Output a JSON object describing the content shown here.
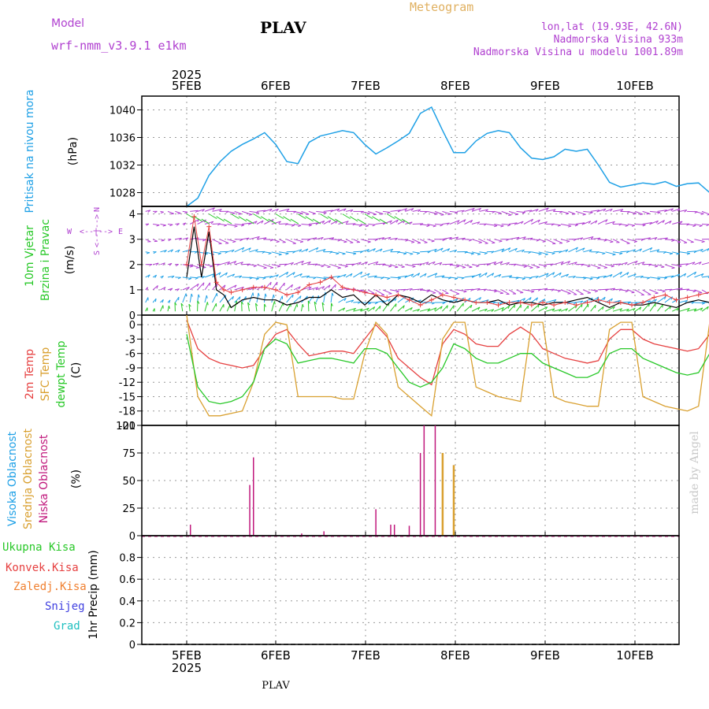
{
  "header": {
    "model_label": "Model",
    "model_name": "wrf-nmm_v3.9.1 e1km",
    "station": "PLAV",
    "product": "Meteogram",
    "coords": "lon,lat (19.93E, 42.6N)",
    "elevation": "Nadmorska Visina 933m",
    "model_elevation": "Nadmorska Visina u modelu 1001.89m"
  },
  "footer": {
    "station": "PLAV",
    "watermark": "made by Angel"
  },
  "time_axis": {
    "year": "2025",
    "days": [
      "5FEB",
      "6FEB",
      "7FEB",
      "8FEB",
      "9FEB",
      "10FEB"
    ]
  },
  "panels": {
    "pressure": {
      "ylabel": "Pritisak na nivou mora",
      "unit": "(hPa)"
    },
    "wind": {
      "ylabel1": "10m Vjetar",
      "ylabel2": "Brzina i Pravac",
      "unit": "(m/s)",
      "compass": {
        "n": "N",
        "s": "S",
        "e": "E",
        "w": "W",
        "cross": "<--|-->"
      }
    },
    "temperature": {
      "series_labels": [
        "2m Temp",
        "SFC Temp",
        "dewpt Temp"
      ],
      "unit": "(C)"
    },
    "cloud": {
      "series_labels": [
        "Visoka Oblacnost",
        "Srednja Oblacnost",
        "Niska Oblacnost"
      ],
      "unit": "(%)"
    },
    "precip": {
      "legend": [
        "Ukupna Kisa",
        "Konvek.Kisa",
        "Zaledj.Kisa",
        "Snijeg",
        "Grad"
      ],
      "ylabel": "1hr Precip (mm)"
    }
  },
  "colors": {
    "pressure": "#1ea0e6",
    "temp2m": "#e64040",
    "sfc": "#d9a030",
    "dew": "#28c828",
    "high_cloud": "#1ea0e6",
    "mid_cloud": "#d9a030",
    "low_cloud": "#c0187c",
    "violet": "#b040d0",
    "orange": "#f08030",
    "snow": "#4040e0",
    "grad": "#20c0c0",
    "wind_speed": "#000000",
    "wind_gust": "#e64040"
  },
  "chart_data": [
    {
      "type": "line",
      "name": "pressure",
      "ylim": [
        1026,
        1042
      ],
      "yticks": [
        1028,
        1032,
        1036,
        1040
      ],
      "x": [
        0,
        3,
        6,
        9,
        12,
        15,
        18,
        21,
        24,
        27,
        30,
        33,
        36,
        39,
        42,
        45,
        48,
        51,
        54,
        57,
        60,
        63,
        66,
        69,
        72,
        75,
        78,
        81,
        84,
        87,
        90,
        93,
        96,
        99,
        102,
        105,
        108,
        111,
        114,
        117,
        120,
        123,
        126,
        129,
        132,
        135,
        138,
        141,
        144
      ],
      "values": [
        1026,
        1027.2,
        1030.5,
        1032.5,
        1034,
        1035,
        1035.8,
        1036.7,
        1035,
        1032.5,
        1032.2,
        1035.3,
        1036.2,
        1036.6,
        1037,
        1036.7,
        1035,
        1033.6,
        1034.5,
        1035.5,
        1036.6,
        1039.5,
        1040.4,
        1037,
        1033.8,
        1033.8,
        1035.5,
        1036.6,
        1037,
        1036.7,
        1034.5,
        1033,
        1032.8,
        1033.2,
        1034.3,
        1034,
        1034.3,
        1032,
        1029.5,
        1028.8,
        1029.1,
        1029.4,
        1029.2,
        1029.6,
        1028.9,
        1029.3,
        1029.4,
        1028,
        1026.2
      ]
    },
    {
      "type": "line",
      "name": "wind",
      "ylim": [
        0,
        4.3
      ],
      "yticks": [
        0,
        1,
        2,
        3,
        4
      ],
      "series": [
        {
          "name": "speed",
          "x": [
            0,
            2,
            4,
            6,
            8,
            10,
            12,
            15,
            18,
            21,
            24,
            27,
            30,
            33,
            36,
            39,
            42,
            45,
            48,
            51,
            54,
            57,
            60,
            63,
            66,
            69,
            72,
            75,
            78,
            81,
            84,
            87,
            90,
            93,
            96,
            99,
            102,
            105,
            108,
            111,
            114,
            117,
            120,
            123,
            126,
            129,
            132,
            135,
            138,
            141,
            144
          ],
          "values": [
            1.5,
            3.5,
            1.5,
            3.3,
            1.0,
            0.8,
            0.3,
            0.6,
            0.7,
            0.6,
            0.6,
            0.4,
            0.5,
            0.7,
            0.7,
            1.0,
            0.7,
            0.8,
            0.4,
            0.8,
            0.4,
            0.8,
            0.7,
            0.5,
            0.8,
            0.6,
            0.5,
            0.6,
            0.5,
            0.5,
            0.6,
            0.4,
            0.5,
            0.5,
            0.4,
            0.5,
            0.5,
            0.6,
            0.7,
            0.5,
            0.3,
            0.5,
            0.4,
            0.4,
            0.5,
            0.4,
            0.3,
            0.5,
            0.6,
            0.5,
            0.7
          ]
        },
        {
          "name": "gust",
          "x": [
            0,
            2,
            4,
            6,
            8,
            10,
            12,
            15,
            18,
            21,
            24,
            27,
            30,
            33,
            36,
            39,
            42,
            45,
            48,
            51,
            54,
            57,
            60,
            63,
            66,
            69,
            72,
            75,
            78,
            81,
            84,
            87,
            90,
            93,
            96,
            99,
            102,
            105,
            108,
            111,
            114,
            117,
            120,
            123,
            126,
            129,
            132,
            135,
            138,
            141,
            144
          ],
          "values": [
            2.0,
            3.9,
            2.0,
            3.5,
            1.3,
            1.0,
            0.9,
            1.0,
            1.1,
            1.1,
            1.0,
            0.8,
            0.9,
            1.2,
            1.3,
            1.5,
            1.1,
            1.0,
            0.9,
            0.8,
            0.7,
            0.8,
            0.6,
            0.4,
            0.6,
            0.8,
            0.7,
            0.6,
            0.5,
            0.5,
            0.4,
            0.5,
            0.5,
            0.4,
            0.5,
            0.4,
            0.5,
            0.4,
            0.5,
            0.6,
            0.5,
            0.5,
            0.4,
            0.5,
            0.7,
            0.8,
            0.6,
            0.7,
            0.8,
            0.9,
            0.9
          ]
        }
      ]
    },
    {
      "type": "line",
      "name": "temperature",
      "ylim": [
        -21,
        2
      ],
      "yticks": [
        -21,
        -18,
        -15,
        -12,
        -9,
        -6,
        -3,
        0,
        3
      ],
      "x": [
        0,
        3,
        6,
        9,
        12,
        15,
        18,
        21,
        24,
        27,
        30,
        33,
        36,
        39,
        42,
        45,
        48,
        51,
        54,
        57,
        60,
        63,
        66,
        69,
        72,
        75,
        78,
        81,
        84,
        87,
        90,
        93,
        96,
        99,
        102,
        105,
        108,
        111,
        114,
        117,
        120,
        123,
        126,
        129,
        132,
        135,
        138,
        141,
        144
      ],
      "series": [
        {
          "name": "2m",
          "values": [
            1,
            -5,
            -7,
            -8,
            -8.5,
            -9,
            -8.5,
            -5,
            -2,
            -1,
            -4,
            -6.5,
            -6,
            -5.5,
            -5.5,
            -6,
            -3,
            0,
            -2.5,
            -7,
            -9,
            -11,
            -12.5,
            -4,
            -1,
            -2,
            -4,
            -4.5,
            -4.5,
            -2,
            -0.5,
            -2,
            -5,
            -6,
            -7,
            -7.5,
            -8,
            -7.5,
            -3,
            -1,
            -1,
            -3,
            -4,
            -4.5,
            -5,
            -5.5,
            -5,
            -2,
            -0.5
          ]
        },
        {
          "name": "sfc",
          "values": [
            2,
            -15,
            -19,
            -19,
            -18.5,
            -18,
            -12,
            -2,
            0.5,
            0,
            -15,
            -15,
            -15,
            -15,
            -15.5,
            -15.5,
            -6,
            0.5,
            -2,
            -13,
            -15,
            -17,
            -19,
            -3,
            0.5,
            0.5,
            -13,
            -14,
            -15,
            -15.5,
            -16,
            0.5,
            0.5,
            -15,
            -16,
            -16.5,
            -17,
            -17,
            -1,
            0.5,
            0.5,
            -15,
            -16,
            -17,
            -17.5,
            -18,
            -17,
            0.5,
            0.5
          ]
        },
        {
          "name": "dewpt",
          "values": [
            -2,
            -13,
            -16,
            -16.5,
            -16,
            -15,
            -12,
            -5,
            -3,
            -4,
            -8,
            -7.5,
            -7,
            -7,
            -7.5,
            -8,
            -5,
            -5,
            -6,
            -9,
            -12,
            -13,
            -12,
            -9,
            -4,
            -5,
            -7,
            -8,
            -8,
            -7,
            -6,
            -6,
            -8,
            -9,
            -10,
            -11,
            -11,
            -10,
            -6,
            -5,
            -5,
            -7,
            -8,
            -9,
            -10,
            -10.5,
            -10,
            -6,
            -3
          ]
        }
      ]
    },
    {
      "type": "bar",
      "name": "cloud",
      "ylim": [
        0,
        100
      ],
      "yticks": [
        0,
        25,
        50,
        75,
        100
      ],
      "series": [
        {
          "name": "high",
          "x": [],
          "values": []
        },
        {
          "name": "mid",
          "x": [
            69,
            72
          ],
          "values": [
            75,
            64
          ]
        },
        {
          "name": "low",
          "x": [
            1,
            17,
            18,
            31,
            37,
            51,
            55,
            56,
            60,
            63,
            64,
            67
          ],
          "values": [
            10,
            46,
            71,
            2,
            4,
            24,
            10,
            10,
            9,
            75,
            100,
            100
          ]
        }
      ]
    },
    {
      "type": "bar",
      "name": "precip",
      "ylim": [
        0,
        1
      ],
      "yticks": [
        0,
        0.2,
        0.4,
        0.6,
        0.8
      ],
      "series": [
        {
          "name": "total",
          "x": [],
          "values": []
        }
      ]
    }
  ]
}
